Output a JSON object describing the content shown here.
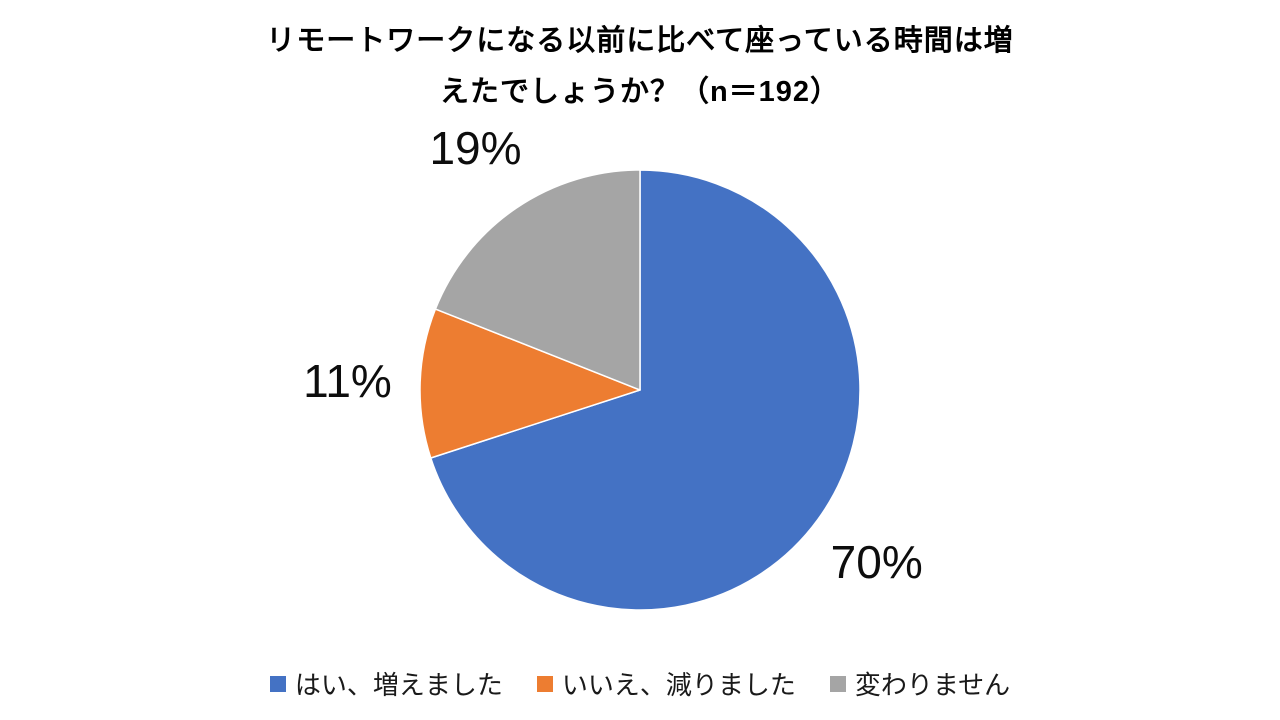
{
  "title": {
    "lines": [
      "リモートワークになる以前に比べて座っている時間は増",
      "えたでしょうか？（n＝192）"
    ]
  },
  "chart_data": {
    "type": "pie",
    "title": "リモートワークになる以前に比べて座っている時間は増えたでしょうか？（n＝192）",
    "n": 192,
    "labels": [
      "はい、増えました",
      "いいえ、減りました",
      "変わりません"
    ],
    "values": [
      70,
      11,
      19
    ],
    "value_labels": [
      "70%",
      "11%",
      "19%"
    ],
    "colors": [
      "#4472C4",
      "#ED7D31",
      "#A5A5A5"
    ],
    "start_angle_deg": 0,
    "direction": "clockwise",
    "legend_position": "bottom",
    "label_color": "#0d0d0d",
    "slice_border_color": "#ffffff"
  }
}
